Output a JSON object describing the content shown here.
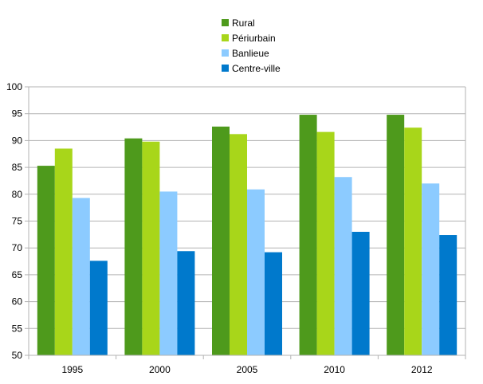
{
  "chart_data": {
    "type": "bar",
    "categories": [
      "1995",
      "2000",
      "2005",
      "2010",
      "2012"
    ],
    "series": [
      {
        "name": "Rural",
        "color": "#4e9a1c",
        "values": [
          85.3,
          90.4,
          92.6,
          94.8,
          94.8
        ]
      },
      {
        "name": "Périurbain",
        "color": "#a8d61a",
        "values": [
          88.5,
          89.8,
          91.2,
          91.6,
          92.4
        ]
      },
      {
        "name": "Banlieue",
        "color": "#8ccbff",
        "values": [
          79.3,
          80.5,
          80.9,
          83.2,
          82.0
        ]
      },
      {
        "name": "Centre-ville",
        "color": "#0079cc",
        "values": [
          67.6,
          69.4,
          69.2,
          73.0,
          72.4
        ]
      }
    ],
    "ylim": [
      50,
      100
    ],
    "yticks": [
      "50",
      "55",
      "60",
      "65",
      "70",
      "75",
      "80",
      "85",
      "90",
      "95",
      "100"
    ],
    "grid": true,
    "legend_position": "top-center"
  }
}
